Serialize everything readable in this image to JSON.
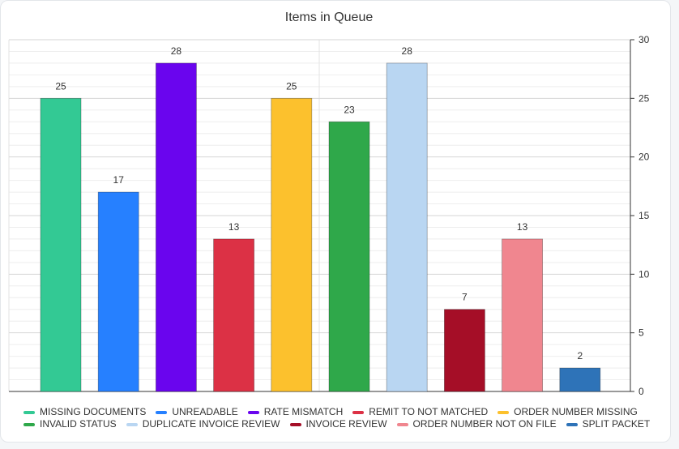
{
  "chart_data": {
    "type": "bar",
    "title": "Items in Queue",
    "xlabel": "",
    "ylabel": "",
    "ylim": [
      0,
      30
    ],
    "yticks": [
      0,
      5,
      10,
      15,
      20,
      25,
      30
    ],
    "y_axis_side": "right",
    "grid": true,
    "legend_position": "bottom",
    "categories": [
      "MISSING DOCUMENTS",
      "UNREADABLE",
      "RATE MISMATCH",
      "REMIT TO NOT MATCHED",
      "ORDER NUMBER MISSING",
      "INVALID STATUS",
      "DUPLICATE INVOICE REVIEW",
      "INVOICE REVIEW",
      "ORDER NUMBER NOT ON FILE",
      "SPLIT PACKET"
    ],
    "values": [
      25,
      17,
      28,
      13,
      25,
      23,
      28,
      7,
      13,
      2
    ],
    "colors": [
      "#33c994",
      "#2680ff",
      "#6a05ee",
      "#dc3145",
      "#fcc12d",
      "#2fa84a",
      "#b9d6f2",
      "#a50e27",
      "#f0868f",
      "#2e73b8"
    ]
  }
}
